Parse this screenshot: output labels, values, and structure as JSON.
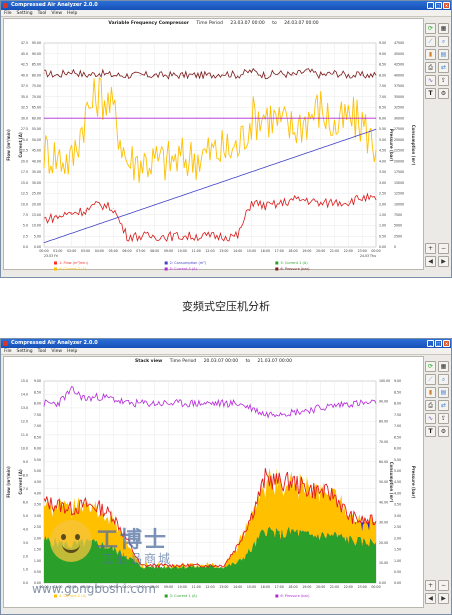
{
  "top_window": {
    "app_title": "Compressed Air Analyzer 2.0.0",
    "menu": [
      "File",
      "Setting",
      "Tool",
      "View",
      "Help"
    ],
    "chart_title": "Variable Frequency Compressor",
    "time_period_label": "Time Period",
    "time_from": "23.03.07 00:00",
    "time_to_label": "to",
    "time_to": "24.03.07 00:00",
    "left_axis_labels": [
      "Flow (m³/min)",
      "Current (A)"
    ],
    "right_axis_labels": [
      "Pressure (bar)",
      "Consumption (m³)"
    ],
    "legend": [
      {
        "label": "1: Flow (m³/min)",
        "color": "#ff2a2a"
      },
      {
        "label": "2: Consumption (m³)",
        "color": "#4040c8"
      },
      {
        "label": "3: Current 1 (A)",
        "color": "#2aa02a"
      },
      {
        "label": "4: Current 2 (A)",
        "color": "#ffc000"
      },
      {
        "label": "5: Current 3 (A)",
        "color": "#b428d8"
      },
      {
        "label": "6: Pressure (bar)",
        "color": "#7a1a1a"
      }
    ],
    "x_start_note": "23.03 Fri",
    "x_end_note": "24.03 Thu"
  },
  "bottom_window": {
    "app_title": "Compressed Air Analyzer 2.0.0",
    "menu": [
      "File",
      "Setting",
      "Tool",
      "View",
      "Help"
    ],
    "chart_title": "Stack view",
    "time_period_label": "Time Period",
    "time_from": "20.03.07 00:00",
    "time_to_label": "to",
    "time_to": "21.03.07 00:00",
    "left_axis_labels": [
      "Flow (m³/min)",
      "Current (A)"
    ],
    "right_axis_labels": [
      "Consumption (m³)",
      "Pressure (bar)"
    ],
    "legend": [
      {
        "label": "4: Current 2 (A)",
        "color": "#ffc000"
      },
      {
        "label": "3: Current 1 (A)",
        "color": "#2aa02a"
      },
      {
        "label": "6: Pressure (bar)",
        "color": "#b428d8"
      }
    ]
  },
  "caption": "变频式空压机分析",
  "watermark": {
    "brand": "工博士",
    "slogan": "工业品商城",
    "url": "www.gongboshi.com"
  },
  "chart_data": [
    {
      "type": "line",
      "title": "Variable Frequency Compressor",
      "x": [
        "00:00",
        "01:00",
        "02:00",
        "03:00",
        "04:00",
        "05:00",
        "06:00",
        "07:00",
        "08:00",
        "09:00",
        "10:00",
        "11:00",
        "12:00",
        "13:00",
        "14:00",
        "15:00",
        "16:00",
        "17:00",
        "18:00",
        "19:00",
        "20:00",
        "21:00",
        "22:00",
        "23:00",
        "00:00"
      ],
      "y_left_flow": {
        "ticks": [
          "0.0",
          "2.5",
          "5.0",
          "7.5",
          "10.0",
          "12.5",
          "15.0",
          "17.5",
          "20.0",
          "22.5",
          "25.0",
          "27.5",
          "30.0",
          "32.5",
          "35.0",
          "37.5",
          "40.0",
          "42.5",
          "45.0",
          "47.5"
        ]
      },
      "y_left_current": {
        "ticks": [
          "0.00",
          "5.00",
          "10.00",
          "15.00",
          "20.00",
          "25.00",
          "30.00",
          "35.00",
          "40.00",
          "45.00",
          "50.00",
          "55.00",
          "60.00",
          "65.00",
          "70.00",
          "75.00",
          "80.00",
          "85.00",
          "90.00",
          "95.00"
        ]
      },
      "y_right_pressure": {
        "ticks": [
          "0.00",
          "0.50",
          "1.00",
          "1.50",
          "2.00",
          "2.50",
          "3.00",
          "3.50",
          "4.00",
          "4.50",
          "5.00",
          "5.50",
          "6.00",
          "6.50",
          "7.00",
          "7.50",
          "8.00",
          "8.50",
          "9.00",
          "9.50"
        ]
      },
      "y_right_consumption": {
        "ticks": [
          "0",
          "2500",
          "5000",
          "7500",
          "10000",
          "12500",
          "15000",
          "17500",
          "20000",
          "22500",
          "25000",
          "27500",
          "30000",
          "32500",
          "35000",
          "37500",
          "40000",
          "42500",
          "45000",
          "47500"
        ]
      },
      "series": [
        {
          "name": "Pressure (bar)",
          "color": "#7a1a1a",
          "values": [
            8.1,
            8.0,
            8.2,
            8.0,
            8.1,
            8.0,
            8.0,
            8.0,
            8.0,
            8.0,
            8.0,
            8.0,
            8.0,
            8.1,
            8.0,
            8.2,
            8.0,
            8.1,
            8.0,
            8.2,
            8.0,
            8.1,
            8.0,
            8.0,
            8.0
          ]
        },
        {
          "name": "Current 2 (A)",
          "color": "#ffc000",
          "values": [
            45,
            42,
            40,
            62,
            72,
            64,
            40,
            40,
            40,
            40,
            41,
            42,
            44,
            45,
            46,
            60,
            62,
            58,
            55,
            60,
            65,
            55,
            60,
            58,
            45
          ]
        },
        {
          "name": "Current 3 (A)",
          "color": "#b428d8",
          "values": [
            60,
            60,
            60,
            60,
            60,
            60,
            60,
            60,
            60,
            60,
            60,
            60,
            60,
            60,
            60,
            60,
            60,
            60,
            60,
            60,
            60,
            60,
            60,
            60,
            60
          ]
        },
        {
          "name": "Flow (m³/min)",
          "color": "#d81b1b",
          "values": [
            6.5,
            7.0,
            8.0,
            8.5,
            10.0,
            9.0,
            2.5,
            2.5,
            2.5,
            2.5,
            2.5,
            2.5,
            2.5,
            2.5,
            2.5,
            10.5,
            9.5,
            10.0,
            11.0,
            11.0,
            10.0,
            10.5,
            10.5,
            11.5,
            11.0
          ]
        },
        {
          "name": "Consumption (m³)",
          "color": "#4040c8",
          "values": [
            1000,
            2100,
            3200,
            4300,
            5400,
            6500,
            7600,
            8700,
            9800,
            10900,
            12000,
            13100,
            14200,
            15300,
            16400,
            17500,
            18600,
            19700,
            20800,
            21900,
            23000,
            24100,
            25200,
            26300,
            27400
          ]
        }
      ]
    },
    {
      "type": "area",
      "title": "Stack view",
      "x": [
        "00:00",
        "01:00",
        "02:00",
        "03:00",
        "04:00",
        "05:00",
        "06:00",
        "07:00",
        "08:00",
        "09:00",
        "10:00",
        "11:00",
        "12:00",
        "13:00",
        "14:00",
        "15:00",
        "16:00",
        "17:00",
        "18:00",
        "19:00",
        "20:00",
        "21:00",
        "22:00",
        "23:00",
        "00:00"
      ],
      "y_left_flow": {
        "ticks": [
          "0.0",
          "1.0",
          "2.0",
          "3.0",
          "4.0",
          "5.0",
          "6.0",
          "7.0",
          "8.0",
          "9.0",
          "10.0",
          "11.0",
          "12.0",
          "13.0",
          "14.0",
          "15.0"
        ]
      },
      "y_left_current": {
        "ticks": [
          "0.00",
          "0.50",
          "1.00",
          "1.50",
          "2.00",
          "2.50",
          "3.00",
          "3.50",
          "4.00",
          "4.50",
          "5.00",
          "5.50",
          "6.00",
          "6.50",
          "7.00",
          "7.50",
          "8.00",
          "8.50",
          "9.00"
        ]
      },
      "y_right_consumption": {
        "ticks": [
          "0.00",
          "10.00",
          "20.00",
          "30.00",
          "40.00",
          "50.00",
          "60.00",
          "70.00",
          "80.00",
          "90.00",
          "100.00"
        ]
      },
      "y_right_pressure": {
        "ticks": [
          "0.00",
          "0.50",
          "1.00",
          "1.50",
          "2.00",
          "2.50",
          "3.00",
          "3.50",
          "4.00",
          "4.50",
          "5.00",
          "5.50",
          "6.00",
          "6.50",
          "7.00",
          "7.50",
          "8.00",
          "8.50",
          "9.00"
        ]
      },
      "series": [
        {
          "name": "Current 1 (A)",
          "color": "#2aa02a",
          "values": [
            3.2,
            3.0,
            2.8,
            3.0,
            2.9,
            2.5,
            2.0,
            1.2,
            1.2,
            1.2,
            1.2,
            1.2,
            1.2,
            1.2,
            1.5,
            2.5,
            4.0,
            3.5,
            3.8,
            3.5,
            3.5,
            3.5,
            3.2,
            3.0,
            3.0
          ]
        },
        {
          "name": "Current 2 (A)",
          "color": "#ffc000",
          "values": [
            2.5,
            2.8,
            2.6,
            2.6,
            2.4,
            2.2,
            1.0,
            0.1,
            0.1,
            0.1,
            0.1,
            0.1,
            0.1,
            0.1,
            1.2,
            2.5,
            3.5,
            3.8,
            3.5,
            3.4,
            3.2,
            3.0,
            1.8,
            1.5,
            1.5
          ]
        },
        {
          "name": "Flow (m³/min)",
          "color": "#e21c1c",
          "values": [
            6.0,
            5.8,
            5.5,
            5.8,
            5.6,
            5.0,
            3.2,
            1.3,
            1.3,
            1.3,
            1.3,
            1.3,
            1.3,
            1.3,
            2.8,
            5.0,
            7.8,
            7.5,
            7.5,
            7.0,
            6.8,
            6.5,
            5.0,
            4.6,
            4.6
          ]
        },
        {
          "name": "Consumption (m³)",
          "color": "#1f1fd8",
          "values": [
            0,
            0,
            0,
            0,
            0,
            0,
            0,
            0,
            0,
            0,
            0,
            0,
            0,
            0,
            0,
            0,
            30,
            30,
            30,
            30,
            30,
            30,
            30,
            30,
            30
          ]
        },
        {
          "name": "Pressure (bar)",
          "color": "#b428d8",
          "values": [
            8.0,
            8.0,
            8.6,
            8.2,
            8.3,
            8.2,
            8.0,
            8.0,
            8.0,
            8.0,
            8.0,
            8.0,
            8.0,
            8.0,
            8.0,
            7.8,
            7.5,
            7.6,
            7.6,
            7.7,
            7.8,
            7.9,
            8.0,
            8.0,
            8.0
          ]
        }
      ]
    }
  ]
}
